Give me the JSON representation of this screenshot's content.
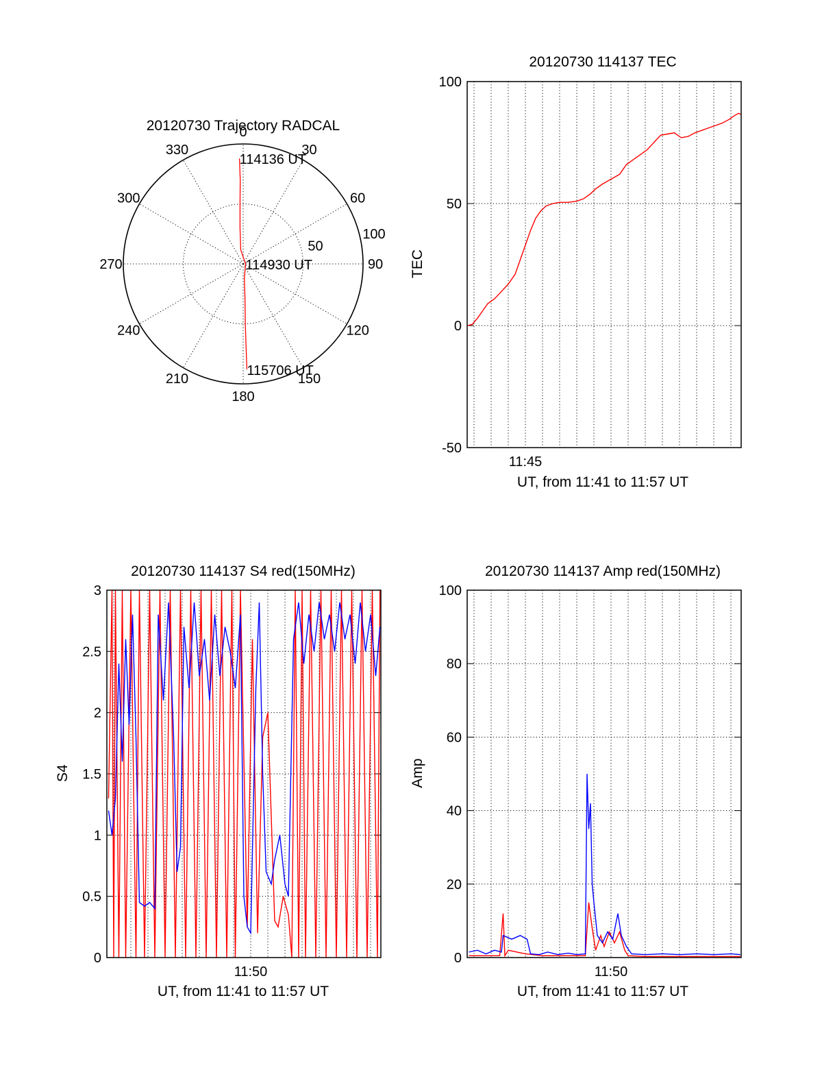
{
  "chart_data": [
    {
      "type": "polar-trajectory",
      "title": "20120730 Trajectory RADCAL",
      "angle_labels": [
        {
          "deg": 0,
          "text": "0"
        },
        {
          "deg": 30,
          "text": "30"
        },
        {
          "deg": 60,
          "text": "60"
        },
        {
          "deg": 90,
          "text": "90"
        },
        {
          "deg": 120,
          "text": "120"
        },
        {
          "deg": 150,
          "text": "150"
        },
        {
          "deg": 180,
          "text": "180"
        },
        {
          "deg": 210,
          "text": "210"
        },
        {
          "deg": 240,
          "text": "240"
        },
        {
          "deg": 270,
          "text": "270"
        },
        {
          "deg": 300,
          "text": "300"
        },
        {
          "deg": 330,
          "text": "330"
        }
      ],
      "radial_labels": [
        {
          "r": 50,
          "text": "50"
        },
        {
          "r": 100,
          "text": "100"
        }
      ],
      "rmax": 100,
      "trajectory_color": "#ff0000",
      "trajectory": [
        {
          "az": 358,
          "r": 88
        },
        {
          "az": 358,
          "r": 70
        },
        {
          "az": 357,
          "r": 50
        },
        {
          "az": 355,
          "r": 30
        },
        {
          "az": 350,
          "r": 12
        },
        {
          "az": 90,
          "r": 2
        },
        {
          "az": 175,
          "r": 12
        },
        {
          "az": 177,
          "r": 30
        },
        {
          "az": 178,
          "r": 50
        },
        {
          "az": 178,
          "r": 70
        },
        {
          "az": 178,
          "r": 88
        }
      ],
      "time_labels": [
        {
          "text": "114136 UT",
          "az": 358,
          "r": 88
        },
        {
          "text": "114930 UT",
          "az": 90,
          "r": 2
        },
        {
          "text": "115706 UT",
          "az": 178,
          "r": 88
        }
      ]
    },
    {
      "type": "line",
      "title": "20120730 114137 TEC",
      "ylabel": "TEC",
      "xlabel": "UT, from 11:41 to 11:57 UT",
      "xlim_minutes": [
        11.6,
        27.97
      ],
      "ylim": [
        -50,
        100
      ],
      "yticks": [
        -50,
        0,
        50,
        100
      ],
      "xticks": [
        {
          "minute": 45,
          "label": "11:45"
        }
      ],
      "series": [
        {
          "color": "#ff0000",
          "points": [
            [
              41.62,
              0
            ],
            [
              41.9,
              0.5
            ],
            [
              42.2,
              3
            ],
            [
              42.5,
              6
            ],
            [
              42.8,
              9
            ],
            [
              43.2,
              11
            ],
            [
              43.6,
              14
            ],
            [
              44.0,
              17
            ],
            [
              44.4,
              21
            ],
            [
              44.7,
              27
            ],
            [
              45.0,
              33
            ],
            [
              45.3,
              39
            ],
            [
              45.6,
              44
            ],
            [
              45.9,
              47
            ],
            [
              46.2,
              49
            ],
            [
              46.6,
              50
            ],
            [
              47.0,
              50.5
            ],
            [
              47.5,
              50.5
            ],
            [
              48.0,
              51
            ],
            [
              48.4,
              52
            ],
            [
              48.8,
              54
            ],
            [
              49.1,
              56
            ],
            [
              49.5,
              58
            ],
            [
              50.0,
              60
            ],
            [
              50.5,
              62
            ],
            [
              50.9,
              66
            ],
            [
              51.3,
              68
            ],
            [
              51.7,
              70
            ],
            [
              52.1,
              72
            ],
            [
              52.5,
              75
            ],
            [
              52.9,
              78
            ],
            [
              53.3,
              78.5
            ],
            [
              53.7,
              79
            ],
            [
              54.1,
              77
            ],
            [
              54.5,
              77.5
            ],
            [
              54.9,
              79
            ],
            [
              55.3,
              80
            ],
            [
              55.7,
              81
            ],
            [
              56.1,
              82
            ],
            [
              56.5,
              83
            ],
            [
              56.9,
              84.5
            ],
            [
              57.2,
              86
            ],
            [
              57.45,
              87
            ],
            [
              57.6,
              86.5
            ]
          ]
        }
      ]
    },
    {
      "type": "line",
      "title": "20120730 114137 S4 red(150MHz)",
      "ylabel": "S4",
      "xlabel": "UT, from 11:41 to 11:57 UT",
      "xlim_minutes": [
        41.6,
        57.6
      ],
      "ylim": [
        0,
        3
      ],
      "yticks": [
        0,
        0.5,
        1,
        1.5,
        2,
        2.5,
        3
      ],
      "xticks": [
        {
          "minute": 50,
          "label": "11:50"
        }
      ],
      "series": [
        {
          "color": "#ff0000",
          "points": [
            [
              41.7,
              1.3
            ],
            [
              41.9,
              3
            ],
            [
              42.0,
              0
            ],
            [
              42.1,
              3
            ],
            [
              42.3,
              0
            ],
            [
              42.5,
              3
            ],
            [
              42.7,
              0
            ],
            [
              43.0,
              3
            ],
            [
              43.3,
              0
            ],
            [
              43.5,
              3
            ],
            [
              43.8,
              0
            ],
            [
              44.1,
              3
            ],
            [
              44.4,
              0
            ],
            [
              44.7,
              3
            ],
            [
              45.0,
              0
            ],
            [
              45.3,
              3
            ],
            [
              45.6,
              0
            ],
            [
              45.9,
              3
            ],
            [
              46.2,
              0
            ],
            [
              46.5,
              3
            ],
            [
              46.8,
              0
            ],
            [
              47.1,
              3
            ],
            [
              47.4,
              0
            ],
            [
              47.7,
              3
            ],
            [
              48.0,
              0
            ],
            [
              48.3,
              3
            ],
            [
              48.6,
              0
            ],
            [
              48.9,
              3
            ],
            [
              49.1,
              0
            ],
            [
              49.4,
              3
            ],
            [
              49.8,
              0.25
            ],
            [
              50.1,
              2.6
            ],
            [
              50.4,
              0.2
            ],
            [
              50.7,
              1.8
            ],
            [
              51.0,
              2.0
            ],
            [
              51.4,
              0.3
            ],
            [
              51.6,
              0.25
            ],
            [
              51.9,
              0.5
            ],
            [
              52.2,
              0.35
            ],
            [
              52.4,
              0
            ],
            [
              52.6,
              3
            ],
            [
              52.8,
              0
            ],
            [
              53.0,
              3
            ],
            [
              53.2,
              0
            ],
            [
              53.5,
              3
            ],
            [
              53.8,
              0
            ],
            [
              54.1,
              3
            ],
            [
              54.4,
              0
            ],
            [
              54.7,
              3
            ],
            [
              55.0,
              0
            ],
            [
              55.3,
              3
            ],
            [
              55.6,
              0
            ],
            [
              55.9,
              3
            ],
            [
              56.2,
              0
            ],
            [
              56.5,
              3
            ],
            [
              56.8,
              0
            ],
            [
              57.1,
              3
            ],
            [
              57.4,
              0
            ],
            [
              57.55,
              3
            ]
          ]
        },
        {
          "color": "#0000ff",
          "points": [
            [
              41.7,
              1.2
            ],
            [
              41.9,
              1.0
            ],
            [
              42.1,
              1.3
            ],
            [
              42.3,
              2.4
            ],
            [
              42.5,
              1.6
            ],
            [
              42.7,
              2.6
            ],
            [
              42.9,
              1.9
            ],
            [
              43.1,
              2.8
            ],
            [
              43.3,
              1.8
            ],
            [
              43.5,
              0.45
            ],
            [
              43.8,
              0.42
            ],
            [
              44.1,
              0.45
            ],
            [
              44.4,
              0.4
            ],
            [
              44.6,
              2.8
            ],
            [
              44.9,
              2.1
            ],
            [
              45.2,
              2.9
            ],
            [
              45.5,
              1.8
            ],
            [
              45.7,
              0.7
            ],
            [
              45.9,
              0.9
            ],
            [
              46.1,
              2.7
            ],
            [
              46.4,
              2.2
            ],
            [
              46.7,
              2.9
            ],
            [
              47.0,
              2.3
            ],
            [
              47.3,
              2.6
            ],
            [
              47.6,
              2.1
            ],
            [
              47.9,
              2.8
            ],
            [
              48.2,
              2.3
            ],
            [
              48.5,
              2.7
            ],
            [
              48.8,
              2.5
            ],
            [
              49.1,
              2.2
            ],
            [
              49.4,
              2.8
            ],
            [
              49.6,
              0.5
            ],
            [
              49.8,
              0.25
            ],
            [
              50.0,
              0.2
            ],
            [
              50.3,
              2.2
            ],
            [
              50.5,
              2.9
            ],
            [
              50.7,
              1.5
            ],
            [
              50.9,
              0.7
            ],
            [
              51.2,
              0.6
            ],
            [
              51.4,
              0.8
            ],
            [
              51.7,
              1.0
            ],
            [
              52.0,
              0.6
            ],
            [
              52.2,
              0.5
            ],
            [
              52.5,
              2.6
            ],
            [
              52.8,
              2.9
            ],
            [
              53.1,
              2.4
            ],
            [
              53.4,
              2.8
            ],
            [
              53.7,
              2.5
            ],
            [
              54.0,
              2.9
            ],
            [
              54.3,
              2.6
            ],
            [
              54.6,
              2.8
            ],
            [
              54.9,
              2.5
            ],
            [
              55.2,
              2.9
            ],
            [
              55.5,
              2.6
            ],
            [
              55.8,
              2.8
            ],
            [
              56.1,
              2.4
            ],
            [
              56.4,
              2.9
            ],
            [
              56.7,
              2.5
            ],
            [
              57.0,
              2.8
            ],
            [
              57.3,
              2.3
            ],
            [
              57.55,
              2.7
            ]
          ]
        }
      ]
    },
    {
      "type": "line",
      "title": "20120730 114137 Amp red(150MHz)",
      "ylabel": "Amp",
      "xlabel": "UT, from 11:41 to 11:57 UT",
      "xlim_minutes": [
        41.6,
        57.6
      ],
      "ylim": [
        0,
        100
      ],
      "yticks": [
        0,
        20,
        40,
        60,
        80,
        100
      ],
      "xticks": [
        {
          "minute": 50,
          "label": "11:50"
        }
      ],
      "series": [
        {
          "color": "#ff0000",
          "points": [
            [
              41.7,
              0.5
            ],
            [
              43.5,
              0.5
            ],
            [
              43.7,
              12
            ],
            [
              43.8,
              0.5
            ],
            [
              44.0,
              2
            ],
            [
              45.0,
              1
            ],
            [
              46.0,
              0.5
            ],
            [
              48.5,
              0.5
            ],
            [
              48.7,
              15
            ],
            [
              48.9,
              8
            ],
            [
              49.1,
              2
            ],
            [
              49.4,
              6
            ],
            [
              49.6,
              3
            ],
            [
              49.9,
              7
            ],
            [
              50.2,
              4
            ],
            [
              50.5,
              7
            ],
            [
              50.8,
              2
            ],
            [
              51.0,
              0.5
            ],
            [
              52.0,
              0.3
            ],
            [
              57.55,
              0.3
            ]
          ]
        },
        {
          "color": "#0000ff",
          "points": [
            [
              41.7,
              1.5
            ],
            [
              42.2,
              2
            ],
            [
              42.7,
              1
            ],
            [
              43.2,
              2
            ],
            [
              43.6,
              1.5
            ],
            [
              43.7,
              6
            ],
            [
              44.2,
              5
            ],
            [
              44.7,
              6
            ],
            [
              45.1,
              5
            ],
            [
              45.3,
              1
            ],
            [
              45.8,
              0.8
            ],
            [
              46.3,
              1.5
            ],
            [
              46.9,
              0.8
            ],
            [
              47.5,
              1.2
            ],
            [
              48.0,
              0.8
            ],
            [
              48.5,
              1
            ],
            [
              48.6,
              50
            ],
            [
              48.7,
              35
            ],
            [
              48.8,
              42
            ],
            [
              48.9,
              20
            ],
            [
              49.0,
              15
            ],
            [
              49.2,
              6
            ],
            [
              49.5,
              4
            ],
            [
              49.8,
              7
            ],
            [
              50.1,
              5
            ],
            [
              50.4,
              12
            ],
            [
              50.6,
              6
            ],
            [
              50.9,
              3
            ],
            [
              51.2,
              1
            ],
            [
              52.0,
              0.8
            ],
            [
              53.0,
              1
            ],
            [
              54.0,
              0.8
            ],
            [
              55.0,
              1
            ],
            [
              56.0,
              0.8
            ],
            [
              57.0,
              1
            ],
            [
              57.55,
              0.8
            ]
          ]
        }
      ]
    }
  ]
}
